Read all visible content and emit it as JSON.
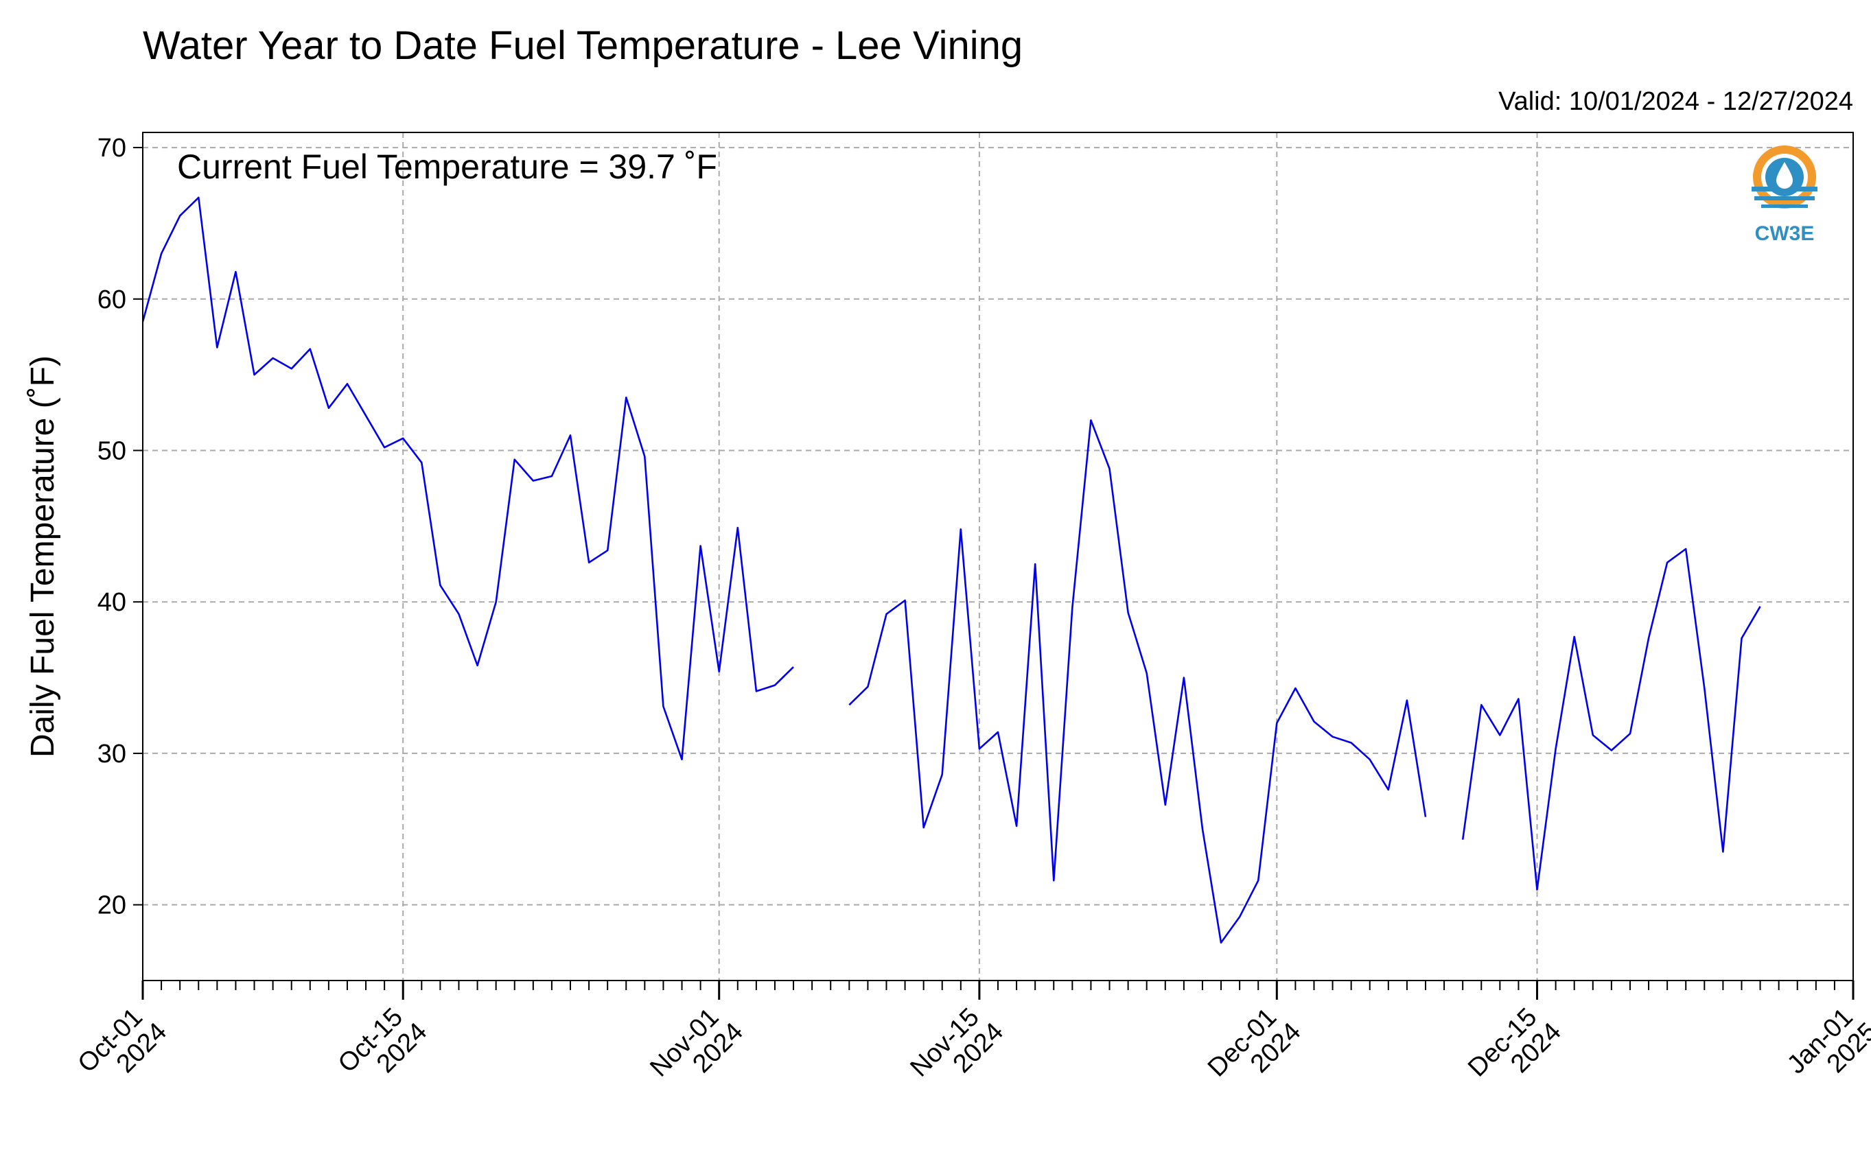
{
  "chart_data": {
    "type": "line",
    "title": "Water Year to Date Fuel Temperature - Lee Vining",
    "subtitle": "Valid: 10/01/2024 - 12/27/2024",
    "ylabel": "Daily Fuel Temperature (˚F)",
    "xlabel": "",
    "annotation": "Current Fuel Temperature = 39.7 ˚F",
    "logo_text": "CW3E",
    "x_range": [
      "2024-10-01",
      "2025-01-01"
    ],
    "ylim": [
      15,
      71
    ],
    "yticks": [
      20,
      30,
      40,
      50,
      60,
      70
    ],
    "xticks": [
      {
        "date": "2024-10-01",
        "line1": "Oct-01",
        "line2": "2024"
      },
      {
        "date": "2024-10-15",
        "line1": "Oct-15",
        "line2": "2024"
      },
      {
        "date": "2024-11-01",
        "line1": "Nov-01",
        "line2": "2024"
      },
      {
        "date": "2024-11-15",
        "line1": "Nov-15",
        "line2": "2024"
      },
      {
        "date": "2024-12-01",
        "line1": "Dec-01",
        "line2": "2024"
      },
      {
        "date": "2024-12-15",
        "line1": "Dec-15",
        "line2": "2024"
      },
      {
        "date": "2025-01-01",
        "line1": "Jan-01",
        "line2": "2025"
      }
    ],
    "grid": true,
    "line_color": "#0000ee",
    "grid_color": "#aaaaaa",
    "series": [
      {
        "dates": [
          "2024-10-01",
          "2024-10-02",
          "2024-10-03",
          "2024-10-04",
          "2024-10-05",
          "2024-10-06",
          "2024-10-07",
          "2024-10-08",
          "2024-10-09",
          "2024-10-10",
          "2024-10-11",
          "2024-10-12",
          "2024-10-13",
          "2024-10-14",
          "2024-10-15",
          "2024-10-16",
          "2024-10-17",
          "2024-10-18",
          "2024-10-19",
          "2024-10-20",
          "2024-10-21",
          "2024-10-22",
          "2024-10-23",
          "2024-10-24",
          "2024-10-25",
          "2024-10-26",
          "2024-10-27",
          "2024-10-28",
          "2024-10-29",
          "2024-10-30",
          "2024-10-31",
          "2024-11-01",
          "2024-11-02",
          "2024-11-03",
          "2024-11-04",
          "2024-11-05",
          "2024-11-06",
          "2024-11-07",
          "2024-11-08",
          "2024-11-09",
          "2024-11-10",
          "2024-11-11",
          "2024-11-12",
          "2024-11-13",
          "2024-11-14",
          "2024-11-15",
          "2024-11-16",
          "2024-11-17",
          "2024-11-18",
          "2024-11-19",
          "2024-11-20",
          "2024-11-21",
          "2024-11-22",
          "2024-11-23",
          "2024-11-24",
          "2024-11-25",
          "2024-11-26",
          "2024-11-27",
          "2024-11-28",
          "2024-11-29",
          "2024-11-30",
          "2024-12-01",
          "2024-12-02",
          "2024-12-03",
          "2024-12-04",
          "2024-12-05",
          "2024-12-06",
          "2024-12-07",
          "2024-12-08",
          "2024-12-09",
          "2024-12-10",
          "2024-12-11",
          "2024-12-12",
          "2024-12-13",
          "2024-12-14",
          "2024-12-15",
          "2024-12-16",
          "2024-12-17",
          "2024-12-18",
          "2024-12-19",
          "2024-12-20",
          "2024-12-21",
          "2024-12-22",
          "2024-12-23",
          "2024-12-24",
          "2024-12-25",
          "2024-12-26",
          "2024-12-27"
        ],
        "values": [
          58.5,
          63.0,
          65.5,
          66.7,
          56.8,
          61.8,
          55.0,
          56.1,
          55.4,
          56.7,
          52.8,
          54.4,
          52.3,
          50.2,
          50.8,
          49.2,
          41.1,
          39.2,
          35.8,
          40.0,
          49.4,
          48.0,
          48.3,
          51.0,
          42.6,
          43.4,
          53.5,
          49.6,
          33.1,
          29.6,
          43.7,
          35.4,
          44.9,
          34.1,
          34.5,
          35.7,
          null,
          null,
          33.2,
          34.4,
          39.2,
          40.1,
          25.1,
          28.6,
          44.8,
          30.3,
          31.4,
          25.2,
          42.5,
          21.6,
          39.6,
          52.0,
          48.8,
          39.3,
          35.3,
          26.6,
          35.0,
          25.0,
          17.5,
          19.2,
          21.6,
          32.0,
          34.3,
          32.1,
          31.1,
          30.7,
          29.6,
          27.6,
          33.5,
          25.8,
          null,
          24.3,
          33.2,
          31.2,
          33.6,
          21.0,
          30.3,
          37.7,
          31.2,
          30.2,
          31.3,
          37.6,
          42.6,
          43.5,
          34.3,
          23.5,
          37.6,
          39.7
        ]
      }
    ]
  }
}
